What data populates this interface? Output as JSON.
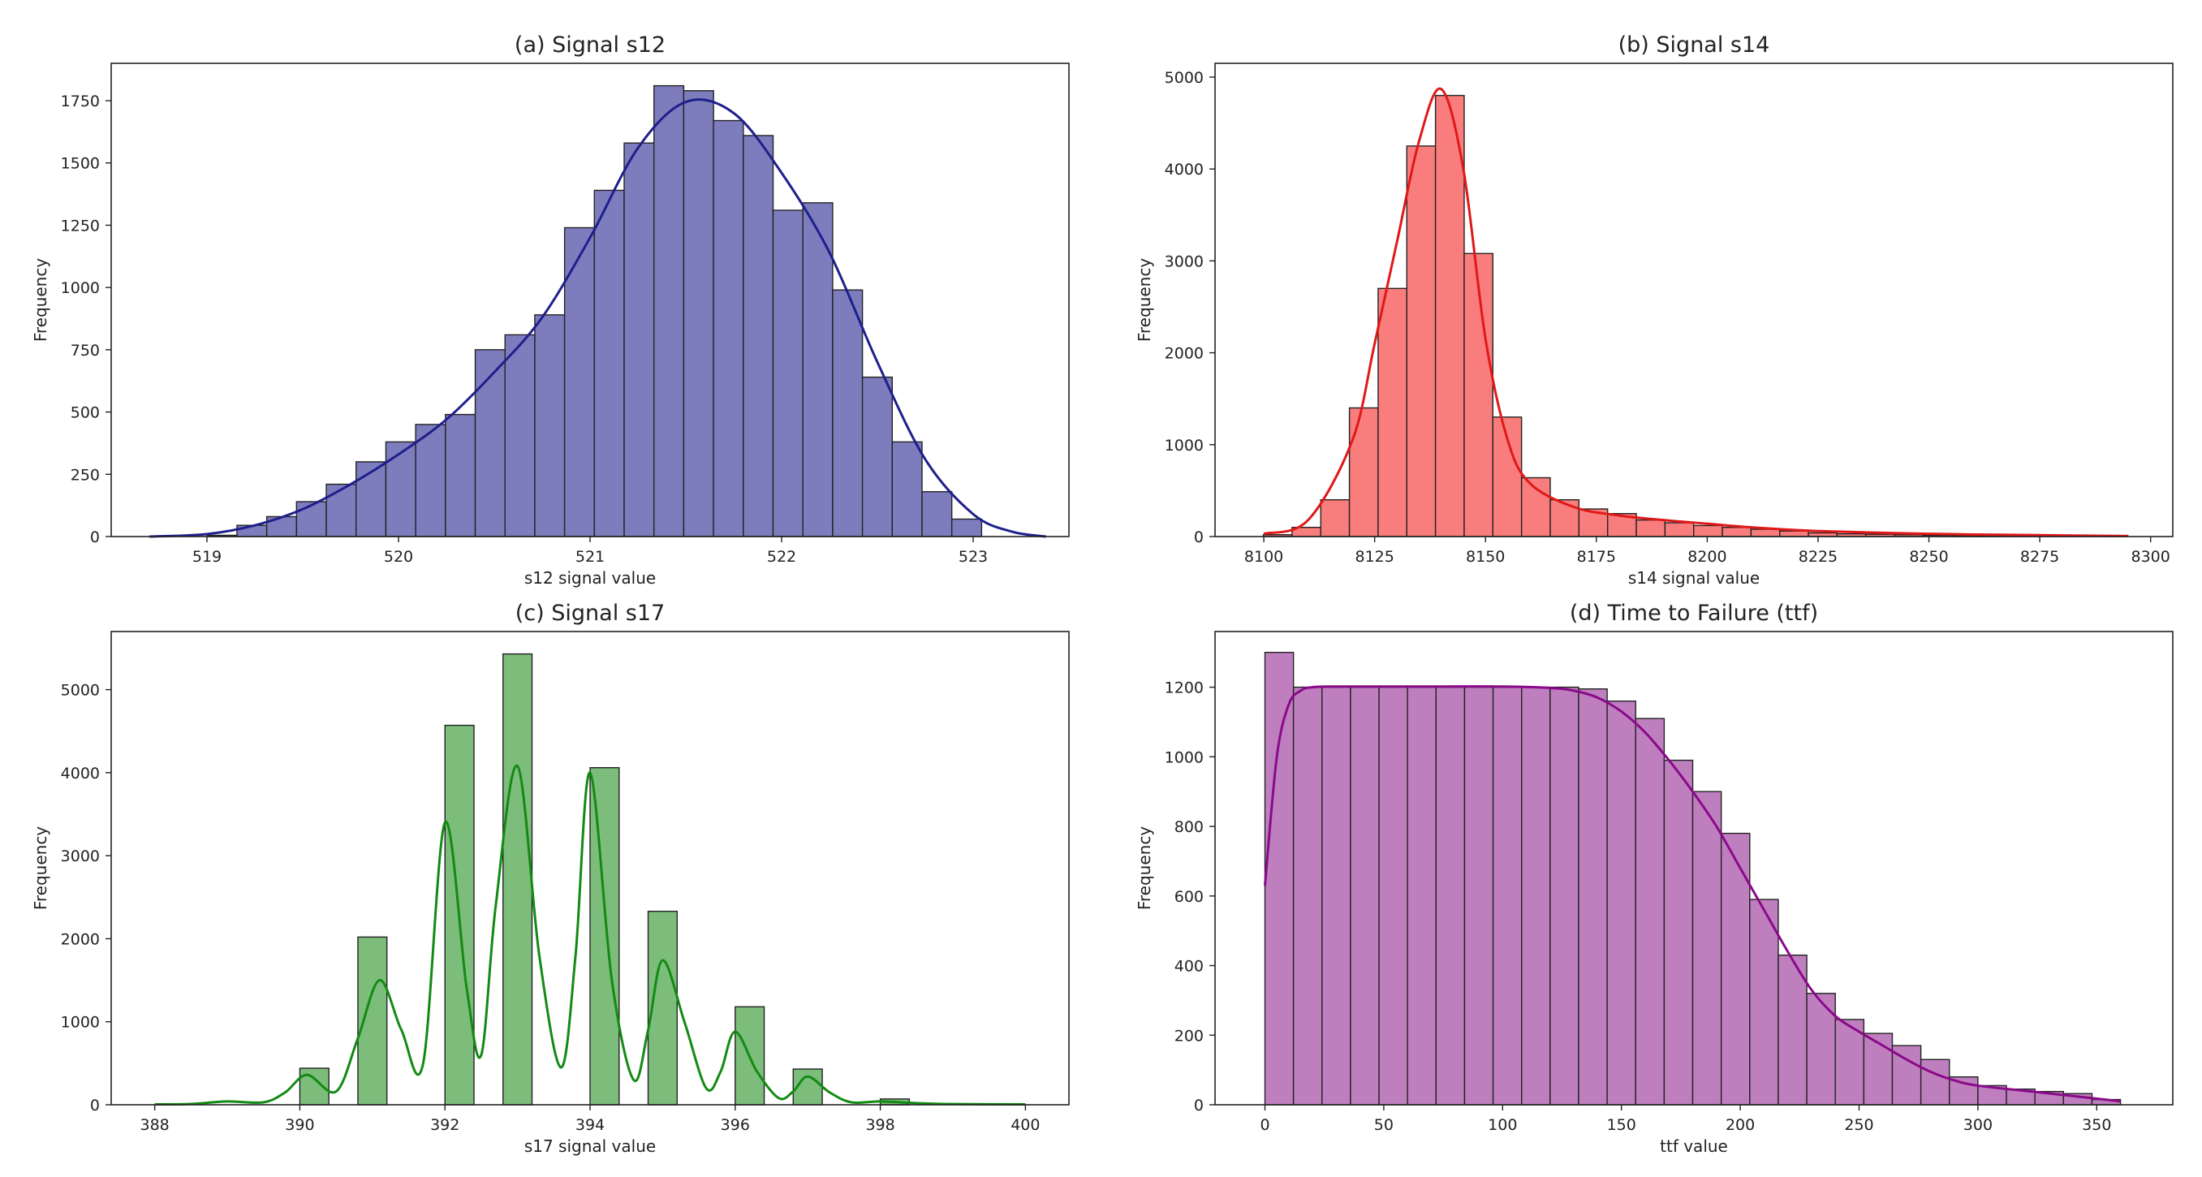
{
  "chart_data": [
    {
      "type": "bar",
      "title": "(a) Signal s12",
      "xlabel": "s12 signal value",
      "ylabel": "Frequency",
      "xlim": [
        518.5,
        523.5
      ],
      "ylim": [
        0,
        1900
      ],
      "xticks": [
        519,
        520,
        521,
        522,
        523
      ],
      "yticks": [
        0,
        250,
        500,
        750,
        1000,
        1250,
        1500,
        1750
      ],
      "colors": {
        "bar": "#7d7dbe",
        "kde": "#1f1f8c",
        "edge": "#222222"
      },
      "bins": {
        "start": 518.69,
        "width": 0.1555,
        "values": [
          0,
          0,
          5,
          45,
          80,
          140,
          210,
          300,
          380,
          450,
          490,
          750,
          810,
          890,
          1240,
          1390,
          1580,
          1810,
          1790,
          1670,
          1610,
          1310,
          1340,
          990,
          640,
          380,
          180,
          70,
          0,
          0
        ]
      },
      "kde": {
        "x": [
          518.7,
          519.0,
          519.25,
          519.5,
          519.75,
          520.0,
          520.25,
          520.5,
          520.75,
          521.0,
          521.25,
          521.5,
          521.75,
          522.0,
          522.25,
          522.5,
          522.75,
          523.0,
          523.2,
          523.38
        ],
        "y": [
          0,
          10,
          45,
          110,
          210,
          330,
          470,
          660,
          880,
          1200,
          1560,
          1745,
          1700,
          1460,
          1140,
          700,
          310,
          90,
          20,
          0
        ]
      }
    },
    {
      "type": "bar",
      "title": "(b) Signal s14",
      "xlabel": "s14 signal value",
      "ylabel": "Frequency",
      "xlim": [
        8089,
        8305
      ],
      "ylim": [
        0,
        5150
      ],
      "xticks": [
        8100,
        8125,
        8150,
        8175,
        8200,
        8225,
        8250,
        8275,
        8300
      ],
      "yticks": [
        0,
        1000,
        2000,
        3000,
        4000,
        5000
      ],
      "colors": {
        "bar": "#f97d7d",
        "kde": "#e01818",
        "edge": "#222222"
      },
      "bins": {
        "start": 8099.9,
        "width": 6.47,
        "values": [
          20,
          100,
          400,
          1400,
          2700,
          4250,
          4800,
          3080,
          1300,
          640,
          400,
          300,
          250,
          180,
          150,
          120,
          100,
          80,
          60,
          40,
          30,
          25,
          20,
          15,
          12,
          10,
          8,
          6,
          5,
          4
        ]
      },
      "kde": {
        "x": [
          8100,
          8110,
          8120,
          8125,
          8130,
          8135,
          8140,
          8145,
          8150,
          8155,
          8160,
          8170,
          8180,
          8190,
          8200,
          8210,
          8225,
          8250,
          8275,
          8295
        ],
        "y": [
          30,
          180,
          1050,
          2100,
          3200,
          4300,
          4870,
          4000,
          2150,
          1050,
          580,
          320,
          230,
          180,
          140,
          100,
          60,
          30,
          15,
          5
        ]
      }
    },
    {
      "type": "bar",
      "title": "(c) Signal s17",
      "xlabel": "s17 signal value",
      "ylabel": "Frequency",
      "xlim": [
        387.4,
        400.6
      ],
      "ylim": [
        0,
        5700
      ],
      "xticks": [
        388,
        390,
        392,
        394,
        396,
        398,
        400
      ],
      "yticks": [
        0,
        1000,
        2000,
        3000,
        4000,
        5000
      ],
      "colors": {
        "bar": "#7cbd7c",
        "kde": "#138a13",
        "edge": "#222222"
      },
      "bins": {
        "start": 388,
        "width": 0.4,
        "values": [
          0,
          0,
          0,
          0,
          0,
          440,
          0,
          2020,
          0,
          0,
          4570,
          0,
          5430,
          0,
          0,
          4060,
          0,
          2330,
          0,
          0,
          1180,
          0,
          430,
          0,
          0,
          70,
          0,
          0,
          0,
          0
        ]
      },
      "kde": {
        "x": [
          388,
          388.5,
          389,
          389.5,
          389.8,
          390.1,
          390.5,
          390.8,
          391.1,
          391.4,
          391.7,
          392.0,
          392.3,
          392.5,
          392.7,
          393.0,
          393.3,
          393.6,
          393.8,
          394.0,
          394.3,
          394.6,
          394.8,
          395.0,
          395.3,
          395.6,
          395.8,
          396.0,
          396.3,
          396.6,
          396.8,
          397.0,
          397.3,
          397.6,
          398,
          398.5,
          399,
          400
        ],
        "y": [
          5,
          10,
          40,
          30,
          150,
          360,
          160,
          800,
          1500,
          900,
          500,
          3400,
          1400,
          600,
          2400,
          4080,
          1800,
          450,
          1800,
          4000,
          1500,
          300,
          900,
          1740,
          1000,
          200,
          400,
          880,
          400,
          80,
          160,
          340,
          150,
          30,
          40,
          20,
          8,
          5
        ]
      }
    },
    {
      "type": "bar",
      "title": "(d) Time to Failure (ttf)",
      "xlabel": "ttf value",
      "ylabel": "Frequency",
      "xlim": [
        -21,
        382
      ],
      "ylim": [
        0,
        1360
      ],
      "xticks": [
        0,
        50,
        100,
        150,
        200,
        250,
        300,
        350
      ],
      "yticks": [
        0,
        200,
        400,
        600,
        800,
        1000,
        1200
      ],
      "colors": {
        "bar": "#bf7fbf",
        "kde": "#8a0a8a",
        "edge": "#222222"
      },
      "bins": {
        "start": 0,
        "width": 12,
        "values": [
          1300,
          1200,
          1200,
          1200,
          1200,
          1200,
          1200,
          1200,
          1200,
          1200,
          1200,
          1195,
          1160,
          1110,
          990,
          900,
          780,
          590,
          430,
          320,
          245,
          205,
          170,
          130,
          80,
          55,
          45,
          38,
          32,
          15
        ]
      },
      "kde": {
        "x": [
          0,
          5,
          10,
          15,
          20,
          30,
          50,
          75,
          100,
          120,
          130,
          140,
          150,
          160,
          170,
          180,
          190,
          200,
          210,
          220,
          230,
          240,
          250,
          260,
          270,
          280,
          290,
          300,
          320,
          340,
          360
        ],
        "y": [
          630,
          1000,
          1150,
          1190,
          1200,
          1202,
          1202,
          1202,
          1202,
          1198,
          1190,
          1170,
          1130,
          1070,
          990,
          900,
          800,
          680,
          560,
          440,
          330,
          255,
          210,
          170,
          130,
          95,
          70,
          55,
          40,
          25,
          10
        ]
      }
    }
  ]
}
